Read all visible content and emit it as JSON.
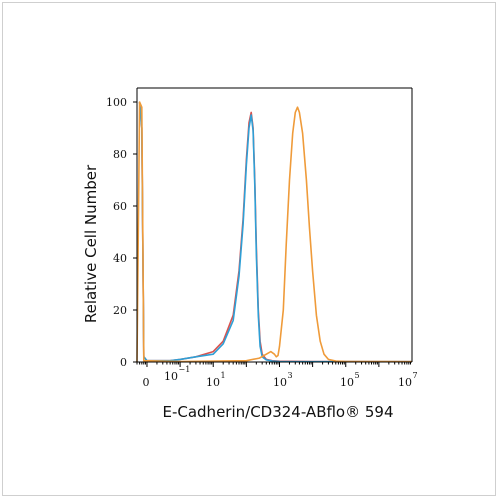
{
  "chart_data": {
    "type": "line",
    "title": "",
    "xlabel": "E-Cadherin/CD324-ABflo® 594",
    "ylabel": "Relative Cell Number",
    "x_scale": "log",
    "xlim": [
      0.05,
      10000000
    ],
    "ylim": [
      0,
      100
    ],
    "yticks": [
      "0",
      "20",
      "40",
      "60",
      "80",
      "100"
    ],
    "xticks": [
      {
        "base": "0",
        "exp": ""
      },
      {
        "base": "10",
        "exp": "1"
      },
      {
        "base": "10",
        "exp": "3"
      },
      {
        "base": "10",
        "exp": "5"
      },
      {
        "base": "10",
        "exp": "7"
      }
    ],
    "xticks_secondary": [
      {
        "base": "10",
        "exp": "−1"
      }
    ],
    "grid": false,
    "series": [
      {
        "color": "#d9534f",
        "points": [
          [
            0.06,
            100
          ],
          [
            0.07,
            90
          ],
          [
            0.08,
            2
          ],
          [
            0.1,
            0.5
          ],
          [
            0.5,
            0.5
          ],
          [
            1,
            1
          ],
          [
            3,
            2
          ],
          [
            10,
            4
          ],
          [
            20,
            8
          ],
          [
            40,
            18
          ],
          [
            60,
            35
          ],
          [
            80,
            55
          ],
          [
            100,
            78
          ],
          [
            120,
            92
          ],
          [
            140,
            96
          ],
          [
            160,
            90
          ],
          [
            180,
            70
          ],
          [
            200,
            45
          ],
          [
            230,
            20
          ],
          [
            260,
            8
          ],
          [
            300,
            3
          ],
          [
            400,
            1
          ],
          [
            600,
            0.5
          ],
          [
            1000,
            0.3
          ],
          [
            10000,
            0.2
          ],
          [
            10000000,
            0.1
          ]
        ]
      },
      {
        "color": "#2e9fd6",
        "points": [
          [
            0.06,
            100
          ],
          [
            0.07,
            90
          ],
          [
            0.08,
            2
          ],
          [
            0.1,
            0.5
          ],
          [
            0.5,
            0.5
          ],
          [
            1,
            1
          ],
          [
            3,
            2
          ],
          [
            10,
            3
          ],
          [
            20,
            7
          ],
          [
            40,
            16
          ],
          [
            60,
            33
          ],
          [
            80,
            53
          ],
          [
            100,
            76
          ],
          [
            120,
            90
          ],
          [
            140,
            95
          ],
          [
            160,
            89
          ],
          [
            180,
            68
          ],
          [
            200,
            42
          ],
          [
            230,
            18
          ],
          [
            260,
            6
          ],
          [
            300,
            2
          ],
          [
            400,
            0.8
          ],
          [
            600,
            0.4
          ],
          [
            1000,
            0.2
          ],
          [
            10000,
            0.1
          ],
          [
            10000000,
            0.1
          ]
        ]
      },
      {
        "color": "#ef9b3a",
        "points": [
          [
            0.05,
            0
          ],
          [
            0.06,
            100
          ],
          [
            0.07,
            98
          ],
          [
            0.08,
            0.5
          ],
          [
            1,
            0.2
          ],
          [
            100,
            0.5
          ],
          [
            250,
            1.5
          ],
          [
            400,
            3
          ],
          [
            550,
            4
          ],
          [
            700,
            3
          ],
          [
            800,
            2
          ],
          [
            900,
            2.5
          ],
          [
            1000,
            6
          ],
          [
            1300,
            20
          ],
          [
            1600,
            45
          ],
          [
            2000,
            70
          ],
          [
            2500,
            88
          ],
          [
            3000,
            96
          ],
          [
            3500,
            98
          ],
          [
            4000,
            96
          ],
          [
            5000,
            88
          ],
          [
            6500,
            70
          ],
          [
            8000,
            52
          ],
          [
            10000,
            35
          ],
          [
            13000,
            18
          ],
          [
            17000,
            8
          ],
          [
            22000,
            3
          ],
          [
            30000,
            1
          ],
          [
            50000,
            0.4
          ],
          [
            100000,
            0.2
          ],
          [
            10000000,
            0.1
          ]
        ]
      }
    ]
  }
}
